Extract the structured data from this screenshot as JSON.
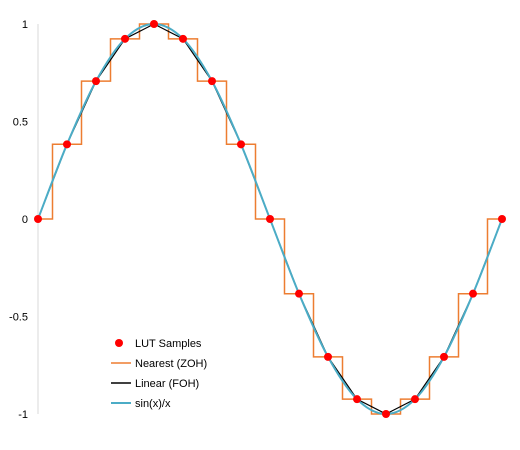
{
  "chart_data": {
    "type": "line",
    "title": "",
    "xlabel": "",
    "ylabel": "",
    "ylim": [
      -1,
      1
    ],
    "yticks": [
      1,
      0.5,
      0,
      -0.5,
      -1
    ],
    "ytick_labels": [
      "1",
      "0.5",
      "0",
      "-0.5",
      "-1"
    ],
    "xlim": [
      0,
      16
    ],
    "grid": false,
    "legend_position": "bottom-left",
    "sample_x": [
      0,
      1,
      2,
      3,
      4,
      5,
      6,
      7,
      8,
      9,
      10,
      11,
      12,
      13,
      14,
      15,
      16
    ],
    "sample_y": [
      0,
      0.383,
      0.707,
      0.924,
      1,
      0.924,
      0.707,
      0.383,
      0,
      -0.383,
      -0.707,
      -0.924,
      -1,
      -0.924,
      -0.707,
      -0.383,
      0
    ],
    "series": [
      {
        "name": "LUT Samples",
        "kind": "markers",
        "color": "#ff0000"
      },
      {
        "name": "Nearest (ZOH)",
        "kind": "step",
        "color": "#ed7d31"
      },
      {
        "name": "Linear (FOH)",
        "kind": "line",
        "color": "#000000"
      },
      {
        "name": "sin(x)/x",
        "kind": "smooth",
        "color": "#4bacc6"
      }
    ]
  }
}
